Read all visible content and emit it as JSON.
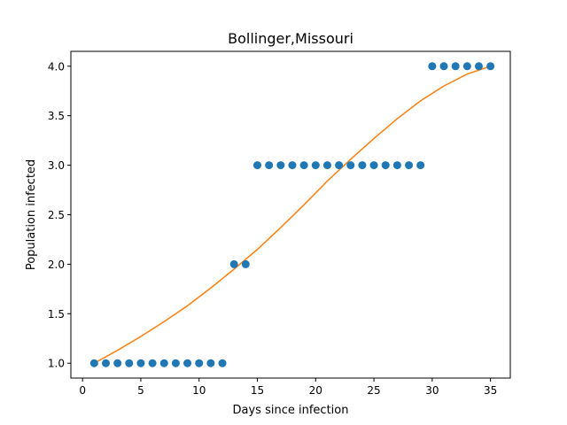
{
  "chart_data": {
    "type": "scatter",
    "title": "Bollinger,Missouri",
    "xlabel": "Days since infection",
    "ylabel": "Population infected",
    "xlim": [
      -1.0,
      36.7
    ],
    "ylim": [
      0.85,
      4.15
    ],
    "xticks": [
      0,
      5,
      10,
      15,
      20,
      25,
      30,
      35
    ],
    "yticks": [
      1.0,
      1.5,
      2.0,
      2.5,
      3.0,
      3.5,
      4.0
    ],
    "xtick_labels": [
      "0",
      "5",
      "10",
      "15",
      "20",
      "25",
      "30",
      "35"
    ],
    "ytick_labels": [
      "1.0",
      "1.5",
      "2.0",
      "2.5",
      "3.0",
      "3.5",
      "4.0"
    ],
    "grid": false,
    "series": [
      {
        "kind": "scatter",
        "color": "#1f77b4",
        "x": [
          1,
          2,
          3,
          4,
          5,
          6,
          7,
          8,
          9,
          10,
          11,
          12,
          13,
          14,
          15,
          16,
          17,
          18,
          19,
          20,
          21,
          22,
          23,
          24,
          25,
          26,
          27,
          28,
          29,
          30,
          31,
          32,
          33,
          34,
          35
        ],
        "y": [
          1,
          1,
          1,
          1,
          1,
          1,
          1,
          1,
          1,
          1,
          1,
          1,
          2,
          2,
          3,
          3,
          3,
          3,
          3,
          3,
          3,
          3,
          3,
          3,
          3,
          3,
          3,
          3,
          3,
          4,
          4,
          4,
          4,
          4,
          4
        ]
      },
      {
        "kind": "line",
        "color": "#ff7f0e",
        "x": [
          1,
          3,
          5,
          7,
          9,
          11,
          13,
          15,
          17,
          19,
          21,
          23,
          25,
          27,
          29,
          31,
          33,
          35
        ],
        "y": [
          1.0,
          1.13,
          1.27,
          1.42,
          1.58,
          1.76,
          1.95,
          2.15,
          2.37,
          2.6,
          2.84,
          3.06,
          3.27,
          3.47,
          3.65,
          3.8,
          3.92,
          4.0
        ]
      }
    ]
  }
}
